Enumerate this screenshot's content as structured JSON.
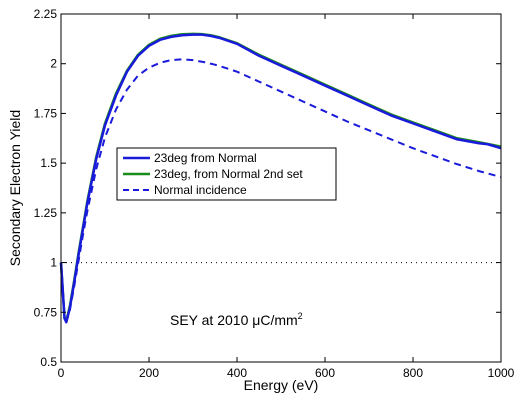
{
  "chart_data": {
    "type": "line",
    "xlabel": "Energy (eV)",
    "ylabel": "Secondary Electron Yield",
    "xlim": [
      0,
      1000
    ],
    "ylim": [
      0.5,
      2.25
    ],
    "x_ticks": [
      0,
      200,
      400,
      600,
      800,
      1000
    ],
    "x_tick_labels": [
      "0",
      "200",
      "400",
      "600",
      "800",
      "1000"
    ],
    "y_ticks": [
      0.5,
      0.75,
      1,
      1.25,
      1.5,
      1.75,
      2,
      2.25
    ],
    "y_tick_labels": [
      "0.5",
      "0.75",
      "1",
      "1.25",
      "1.5",
      "1.75",
      "2",
      "2.25"
    ],
    "grid": false,
    "legend_position": "middle-left",
    "annotation": {
      "prefix": "SEY at 2010 ",
      "mu": "μ",
      "unit": "C/mm",
      "superscript": "2",
      "x": 170,
      "y": 0.665
    },
    "reference_line": {
      "y": 1,
      "style": "dotted",
      "color": "#000000"
    },
    "series": [
      {
        "name": "23deg from Normal",
        "color": "#1a1adb",
        "style": "solid",
        "x": [
          0,
          8,
          12,
          20,
          30,
          40,
          50,
          60,
          80,
          100,
          125,
          150,
          175,
          200,
          225,
          250,
          275,
          300,
          320,
          340,
          360,
          380,
          400,
          450,
          500,
          550,
          600,
          650,
          700,
          750,
          800,
          850,
          900,
          950,
          970,
          1000
        ],
        "y": [
          1.0,
          0.72,
          0.7,
          0.77,
          0.9,
          1.04,
          1.17,
          1.3,
          1.52,
          1.69,
          1.84,
          1.96,
          2.04,
          2.09,
          2.12,
          2.135,
          2.143,
          2.146,
          2.146,
          2.14,
          2.13,
          2.115,
          2.1,
          2.04,
          1.99,
          1.94,
          1.89,
          1.84,
          1.79,
          1.74,
          1.7,
          1.66,
          1.62,
          1.6,
          1.595,
          1.575
        ]
      },
      {
        "name": "23deg, from Normal 2nd set",
        "color": "#1a8c1a",
        "style": "solid",
        "x": [
          0,
          8,
          12,
          20,
          30,
          40,
          50,
          60,
          80,
          100,
          125,
          150,
          175,
          200,
          225,
          250,
          275,
          300,
          320,
          340,
          360,
          380,
          400,
          450,
          500,
          550,
          600,
          650,
          700,
          750,
          800,
          850,
          900,
          950,
          1000
        ],
        "y": [
          1.0,
          0.72,
          0.705,
          0.78,
          0.91,
          1.05,
          1.18,
          1.31,
          1.53,
          1.7,
          1.85,
          1.965,
          2.045,
          2.095,
          2.125,
          2.14,
          2.148,
          2.15,
          2.149,
          2.143,
          2.133,
          2.118,
          2.103,
          2.045,
          1.995,
          1.945,
          1.895,
          1.845,
          1.795,
          1.745,
          1.705,
          1.665,
          1.625,
          1.605,
          1.583
        ]
      },
      {
        "name": "Normal incidence",
        "color": "#1a1adb",
        "style": "dashed",
        "x": [
          0,
          8,
          12,
          20,
          30,
          40,
          50,
          60,
          80,
          100,
          125,
          150,
          175,
          200,
          225,
          250,
          275,
          300,
          325,
          350,
          375,
          400,
          450,
          500,
          550,
          600,
          650,
          700,
          750,
          800,
          850,
          900,
          950,
          1000
        ],
        "y": [
          1.0,
          0.72,
          0.7,
          0.76,
          0.88,
          1.01,
          1.14,
          1.26,
          1.47,
          1.63,
          1.77,
          1.87,
          1.94,
          1.98,
          2.005,
          2.018,
          2.022,
          2.018,
          2.008,
          1.995,
          1.978,
          1.96,
          1.91,
          1.86,
          1.81,
          1.76,
          1.71,
          1.665,
          1.62,
          1.575,
          1.535,
          1.495,
          1.46,
          1.43
        ]
      }
    ]
  }
}
